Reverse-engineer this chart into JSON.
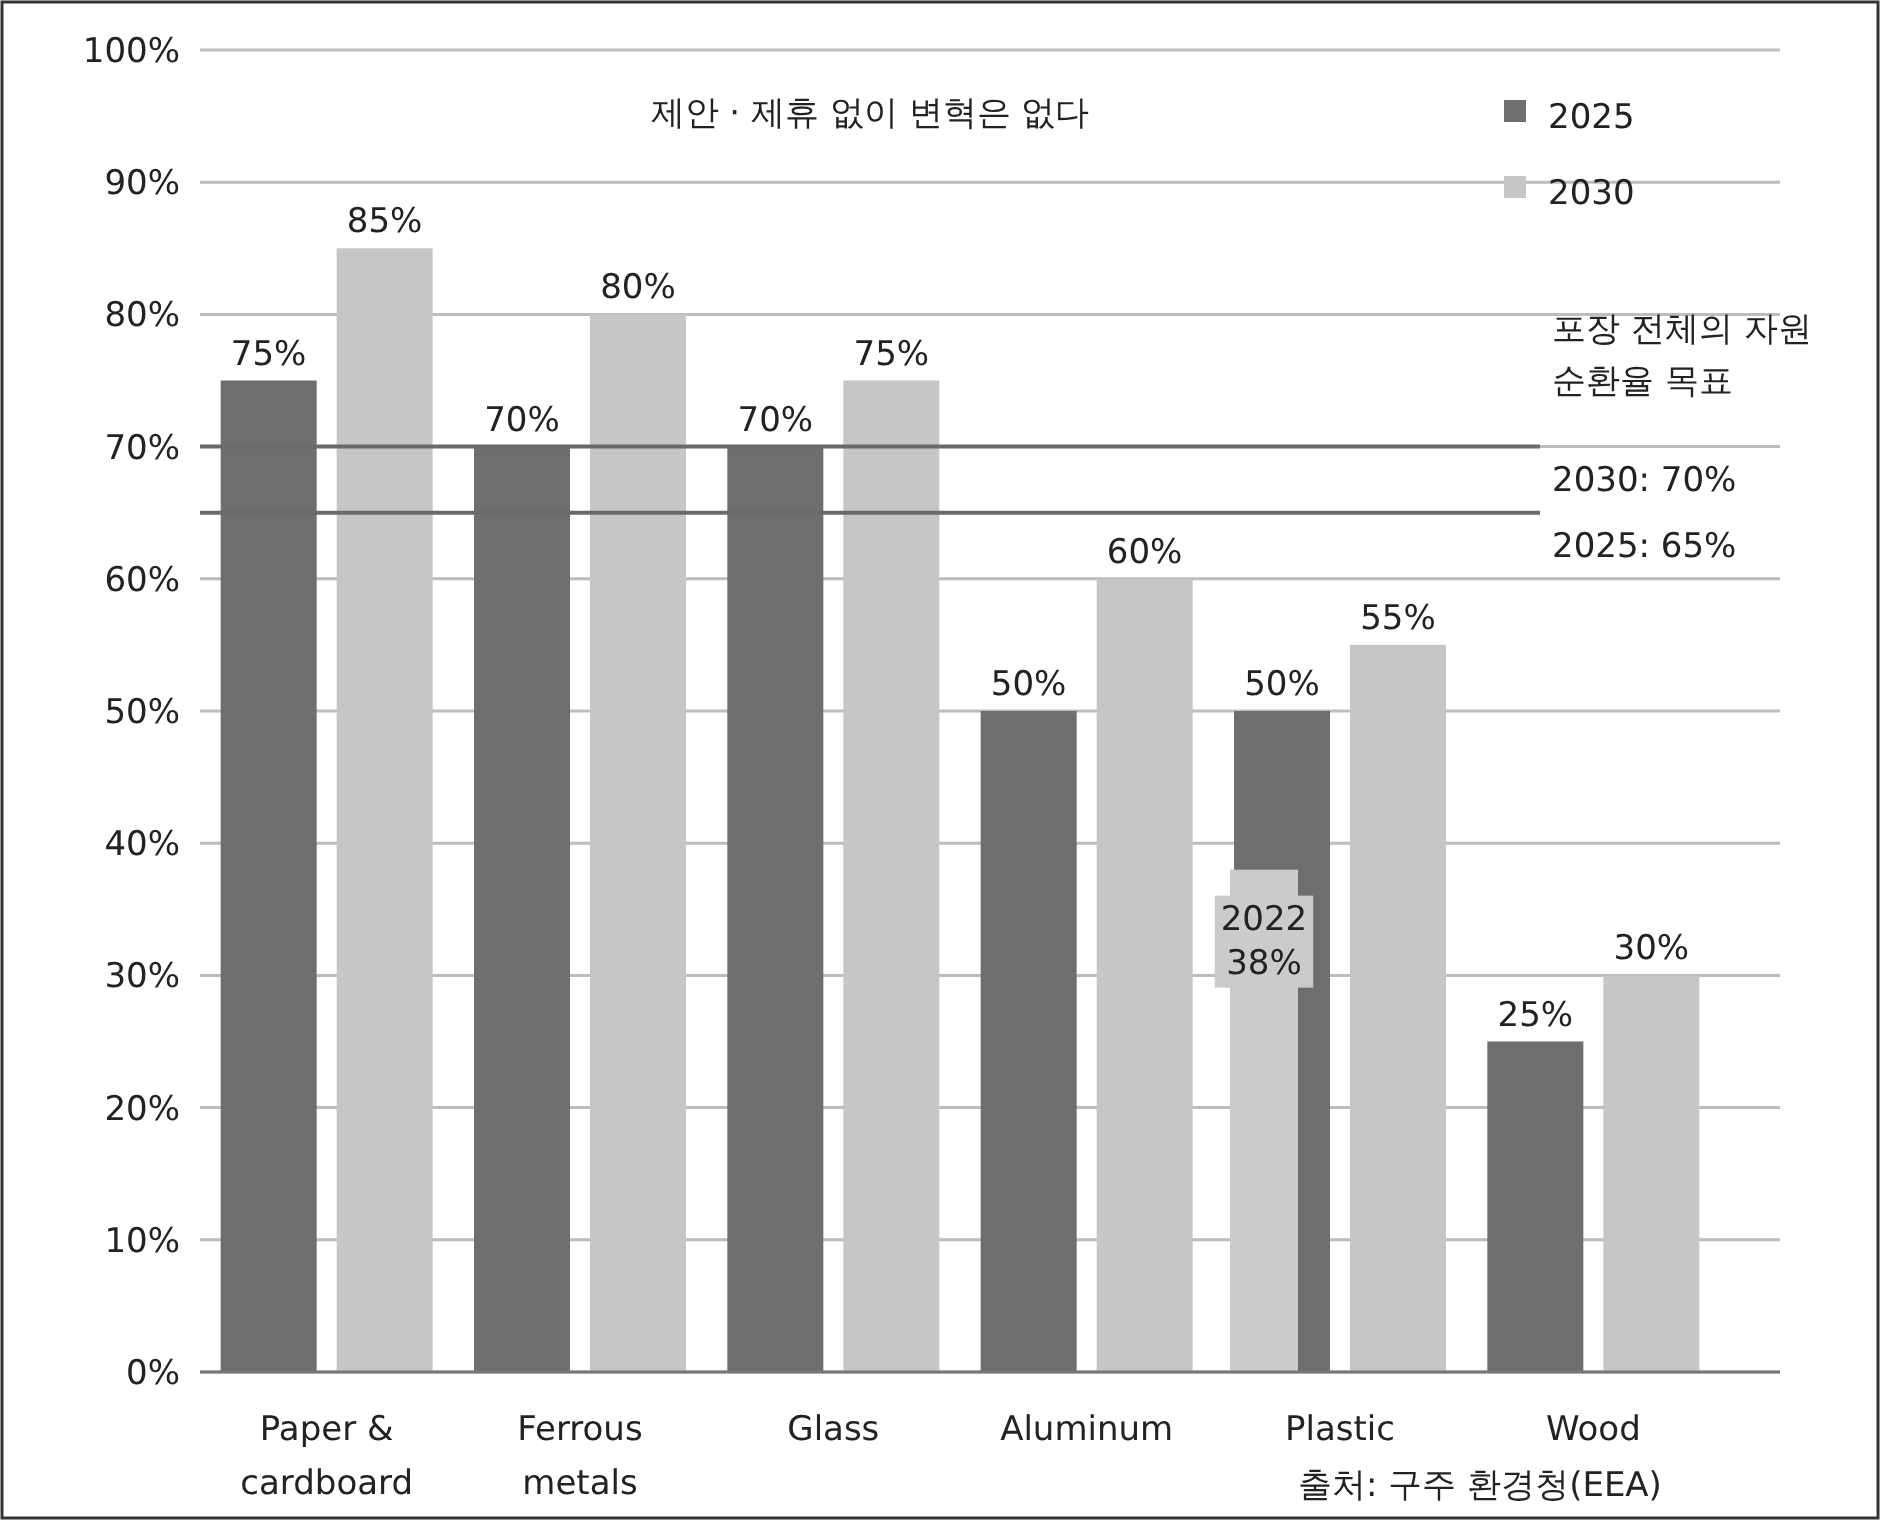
{
  "chart_data": {
    "type": "bar",
    "title": "제안 · 제휴 없이 변혁은 없다",
    "categories": [
      "Paper & cardboard",
      "Ferrous metals",
      "Glass",
      "Aluminum",
      "Plastic",
      "Wood"
    ],
    "series": [
      {
        "name": "2025",
        "color": "#6e6e6e",
        "values": [
          75,
          70,
          70,
          50,
          50,
          25
        ],
        "value_labels": [
          "75%",
          "70%",
          "70%",
          "50%",
          "50%",
          "25%"
        ]
      },
      {
        "name": "2030",
        "color": "#c6c6c6",
        "values": [
          85,
          80,
          75,
          60,
          55,
          30
        ],
        "value_labels": [
          "85%",
          "80%",
          "75%",
          "60%",
          "55%",
          "30%"
        ]
      },
      {
        "color": "#cbcbcb",
        "values": [
          null,
          null,
          null,
          null,
          38,
          null
        ],
        "value_labels": [
          null,
          null,
          null,
          null,
          "2022\n38%",
          null
        ]
      }
    ],
    "ylim": [
      0,
      100
    ],
    "yticks": [
      {
        "value": 0,
        "label": "0%"
      },
      {
        "value": 10,
        "label": "10%"
      },
      {
        "value": 20,
        "label": "20%"
      },
      {
        "value": 30,
        "label": "30%"
      },
      {
        "value": 40,
        "label": "40%"
      },
      {
        "value": 50,
        "label": "50%"
      },
      {
        "value": 60,
        "label": "60%"
      },
      {
        "value": 70,
        "label": "70%"
      },
      {
        "value": 80,
        "label": "80%"
      },
      {
        "value": 90,
        "label": "90%"
      },
      {
        "value": 100,
        "label": "100%"
      }
    ],
    "grid": "y",
    "legend": "top right",
    "ref_lines": [
      {
        "axis": "y",
        "value": 70,
        "label": "2030: 70%",
        "color": "#6a6a6a"
      },
      {
        "axis": "y",
        "value": 65,
        "label": "2025: 65%",
        "color": "#6a6a6a"
      }
    ],
    "annotations": [
      "포장 전체의 자원 순환율 목표",
      "출처: 구주 환경청(EEA)"
    ]
  }
}
